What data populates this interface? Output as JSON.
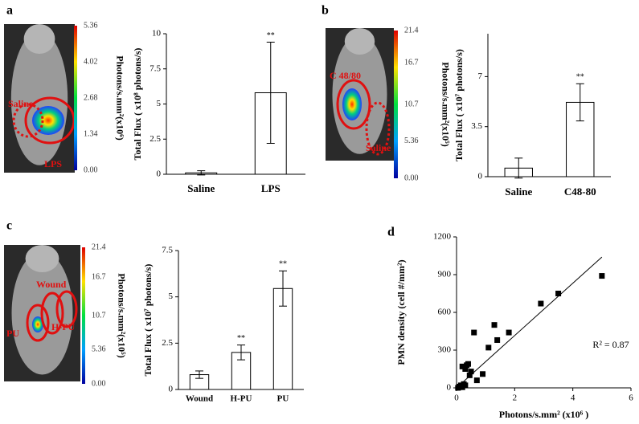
{
  "chart_data": [
    {
      "type": "bar",
      "panel": "a",
      "ylabel": "Total Flux ( x10⁸ photons/s)",
      "categories": [
        "Saline",
        "LPS"
      ],
      "values": [
        0.1,
        5.8
      ],
      "errors": [
        0.15,
        3.6
      ],
      "significance": [
        null,
        "**"
      ],
      "color": "#ffffff",
      "ylim": [
        0,
        10
      ],
      "yticks": [
        0,
        2.5,
        5,
        7.5,
        10
      ],
      "colorbar": {
        "label": "Photons/s.mm²(x10⁶)",
        "clim": [
          0,
          5.36
        ],
        "ticks": [
          {
            "value": 0,
            "label": "0.00"
          },
          1.34,
          2.68,
          4.02,
          5.36
        ]
      },
      "annotations": [
        "Saline",
        "LPS"
      ]
    },
    {
      "type": "bar",
      "panel": "b",
      "ylabel": "Total Flux ( x10⁷ photons/s)",
      "categories": [
        "Saline",
        "C48-80"
      ],
      "values": [
        0.6,
        5.2
      ],
      "errors": [
        0.7,
        1.3
      ],
      "significance": [
        null,
        "**"
      ],
      "color": "#ffffff",
      "ylim": [
        0,
        10
      ],
      "yticks": [
        0,
        3.5,
        7
      ],
      "colorbar": {
        "label": "Photons/s.mm²(x10⁵)",
        "clim": [
          0,
          21.4
        ],
        "ticks": [
          {
            "value": 0,
            "label": "0.00"
          },
          5.36,
          10.7,
          16.7,
          21.4
        ]
      },
      "annotations": [
        "C 48/80",
        "Saline"
      ]
    },
    {
      "type": "bar",
      "panel": "c",
      "ylabel": "Total Flux ( x10⁷ photons/s)",
      "categories": [
        "Wound",
        "H-PU",
        "PU"
      ],
      "values": [
        0.8,
        2.0,
        5.45
      ],
      "errors": [
        0.2,
        0.4,
        0.95
      ],
      "significance": [
        null,
        "**",
        "**"
      ],
      "color": "#ffffff",
      "ylim": [
        0,
        7.5
      ],
      "yticks": [
        0,
        2.5,
        5,
        7.5
      ],
      "colorbar": {
        "label": "Photons/s.mm²(x10⁵)",
        "clim": [
          0,
          21.4
        ],
        "ticks": [
          {
            "value": 0,
            "label": "0.00"
          },
          5.36,
          10.7,
          16.7,
          21.4
        ]
      },
      "annotations": [
        "Wound",
        "PU",
        "H-PU"
      ]
    },
    {
      "type": "scatter",
      "panel": "d",
      "xlabel": "Photons/s.mm² (x10⁶ )",
      "ylabel": "PMN density (cell #/mm²)",
      "x": [
        0.05,
        0.1,
        0.15,
        0.2,
        0.25,
        0.3,
        0.35,
        0.4,
        0.45,
        0.5,
        0.6,
        0.7,
        0.9,
        1.1,
        1.3,
        1.4,
        1.8,
        2.9,
        3.5,
        5.0,
        0.2,
        0.3
      ],
      "y": [
        0,
        10,
        20,
        5,
        30,
        150,
        180,
        190,
        100,
        130,
        440,
        60,
        110,
        320,
        500,
        380,
        440,
        670,
        750,
        890,
        170,
        20
      ],
      "color": "#000000",
      "xlim": [
        0,
        6
      ],
      "xticks": [
        0,
        2,
        4,
        6
      ],
      "ylim": [
        0,
        1200
      ],
      "yticks": [
        0,
        300,
        600,
        900,
        1200
      ],
      "trendline": {
        "x": [
          0,
          5
        ],
        "y": [
          0,
          1040
        ]
      },
      "annotation": "R² = 0.87"
    }
  ]
}
